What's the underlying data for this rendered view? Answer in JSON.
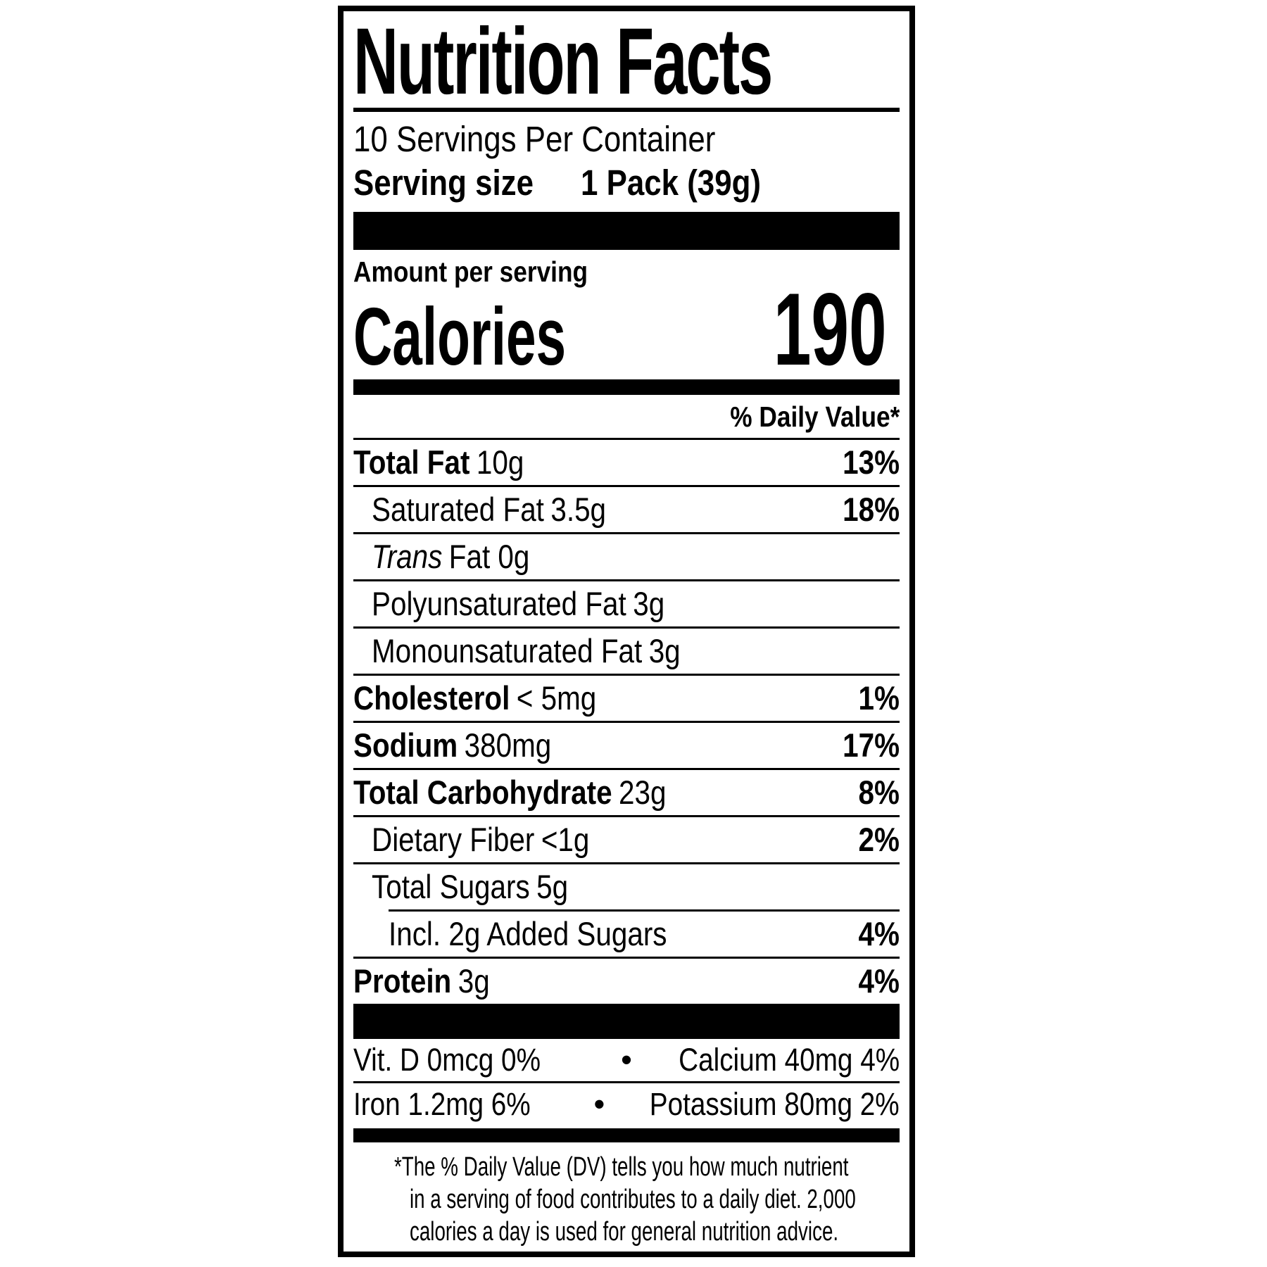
{
  "colors": {
    "ink": "#000000",
    "paper": "#ffffff"
  },
  "label": {
    "title": "Nutrition Facts",
    "servings_per_container": "10 Servings Per Container",
    "serving_size": {
      "label": "Serving size",
      "value": "1 Pack (39g)"
    },
    "amount_per_serving": "Amount per serving",
    "calories": {
      "label": "Calories",
      "value": "190"
    },
    "daily_value_header": "% Daily Value*",
    "nutrients": [
      {
        "name": "Total Fat",
        "amount": "10g",
        "dv": "13%"
      },
      {
        "name": "Saturated Fat",
        "amount": "3.5g",
        "dv": "18%"
      },
      {
        "name": "Trans",
        "amount": "Fat 0g",
        "dv": ""
      },
      {
        "name": "Polyunsaturated Fat",
        "amount": "3g",
        "dv": ""
      },
      {
        "name": "Monounsaturated Fat",
        "amount": "3g",
        "dv": ""
      },
      {
        "name": "Cholesterol",
        "amount": "< 5mg",
        "dv": "1%"
      },
      {
        "name": "Sodium",
        "amount": "380mg",
        "dv": "17%"
      },
      {
        "name": "Total Carbohydrate",
        "amount": "23g",
        "dv": "8%"
      },
      {
        "name": "Dietary Fiber",
        "amount": "<1g",
        "dv": "2%"
      },
      {
        "name": "Total Sugars",
        "amount": "5g",
        "dv": ""
      },
      {
        "name": "Incl. 2g Added Sugars",
        "amount": "",
        "dv": "4%"
      },
      {
        "name": "Protein",
        "amount": "3g",
        "dv": "4%"
      }
    ],
    "micronutrients": {
      "bullet": "•",
      "rows": [
        {
          "left": "Vit. D 0mcg 0%",
          "right": "Calcium 40mg 4%"
        },
        {
          "left": "Iron 1.2mg 6%",
          "right": "Potassium 80mg 2%"
        }
      ]
    },
    "footnote_lines": [
      "*The % Daily Value (DV) tells you how much nutrient",
      "in a serving of food contributes to a daily diet. 2,000",
      "calories a day is used for general nutrition advice."
    ]
  }
}
